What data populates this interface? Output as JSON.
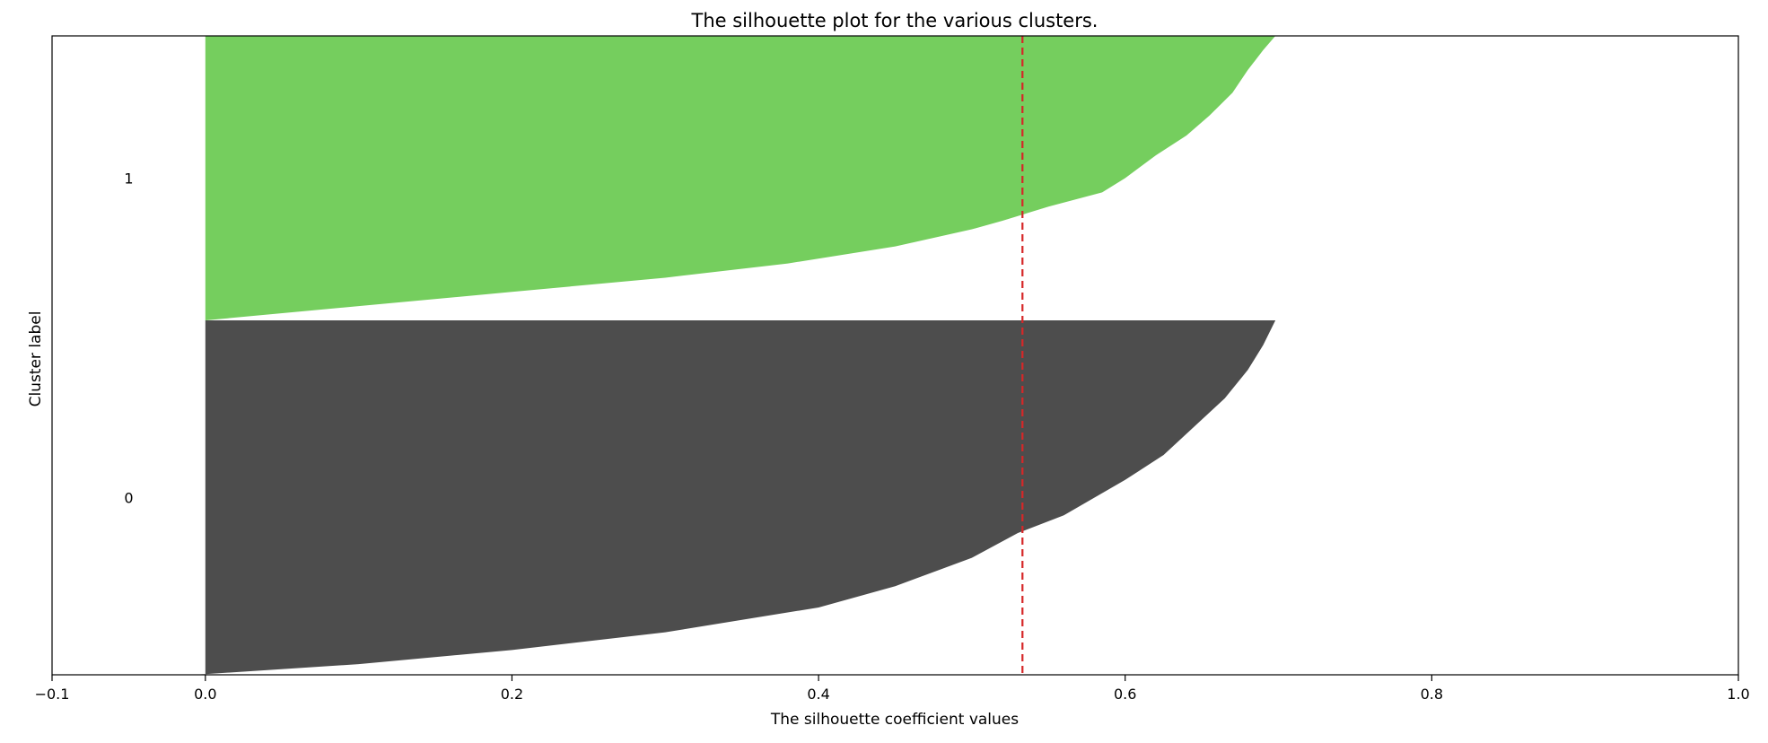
{
  "chart_data": {
    "type": "area",
    "title": "The silhouette plot for the various clusters.",
    "xlabel": "The silhouette coefficient values",
    "ylabel": "Cluster label",
    "xlim": [
      -0.1,
      1.0
    ],
    "x_ticks": [
      "−0.1",
      "0.0",
      "0.2",
      "0.4",
      "0.6",
      "0.8",
      "1.0"
    ],
    "x_tick_values": [
      -0.1,
      0.0,
      0.2,
      0.4,
      0.6,
      0.8,
      1.0
    ],
    "grid": false,
    "average_silhouette_score": 0.533,
    "average_line_color": "#d62728",
    "clusters": [
      {
        "label": "0",
        "color": "#4d4d4d",
        "sorted_silhouette_profile": [
          {
            "f": 0.0,
            "v": -0.01
          },
          {
            "f": 0.002,
            "v": 0.0
          },
          {
            "f": 0.03,
            "v": 0.1
          },
          {
            "f": 0.07,
            "v": 0.2
          },
          {
            "f": 0.12,
            "v": 0.3
          },
          {
            "f": 0.19,
            "v": 0.4
          },
          {
            "f": 0.25,
            "v": 0.45
          },
          {
            "f": 0.33,
            "v": 0.5
          },
          {
            "f": 0.4,
            "v": 0.53
          },
          {
            "f": 0.45,
            "v": 0.56
          },
          {
            "f": 0.5,
            "v": 0.58
          },
          {
            "f": 0.55,
            "v": 0.6
          },
          {
            "f": 0.62,
            "v": 0.625
          },
          {
            "f": 0.7,
            "v": 0.645
          },
          {
            "f": 0.78,
            "v": 0.665
          },
          {
            "f": 0.86,
            "v": 0.68
          },
          {
            "f": 0.93,
            "v": 0.69
          },
          {
            "f": 1.0,
            "v": 0.698
          }
        ]
      },
      {
        "label": "1",
        "color": "#75ce5e",
        "sorted_silhouette_profile": [
          {
            "f": 0.0,
            "v": 0.0
          },
          {
            "f": 0.05,
            "v": 0.1
          },
          {
            "f": 0.1,
            "v": 0.2
          },
          {
            "f": 0.15,
            "v": 0.3
          },
          {
            "f": 0.2,
            "v": 0.38
          },
          {
            "f": 0.26,
            "v": 0.45
          },
          {
            "f": 0.32,
            "v": 0.5
          },
          {
            "f": 0.35,
            "v": 0.52
          },
          {
            "f": 0.4,
            "v": 0.55
          },
          {
            "f": 0.45,
            "v": 0.585
          },
          {
            "f": 0.5,
            "v": 0.6
          },
          {
            "f": 0.58,
            "v": 0.62
          },
          {
            "f": 0.65,
            "v": 0.64
          },
          {
            "f": 0.72,
            "v": 0.655
          },
          {
            "f": 0.8,
            "v": 0.67
          },
          {
            "f": 0.88,
            "v": 0.68
          },
          {
            "f": 0.95,
            "v": 0.69
          },
          {
            "f": 1.0,
            "v": 0.698
          }
        ]
      }
    ]
  }
}
